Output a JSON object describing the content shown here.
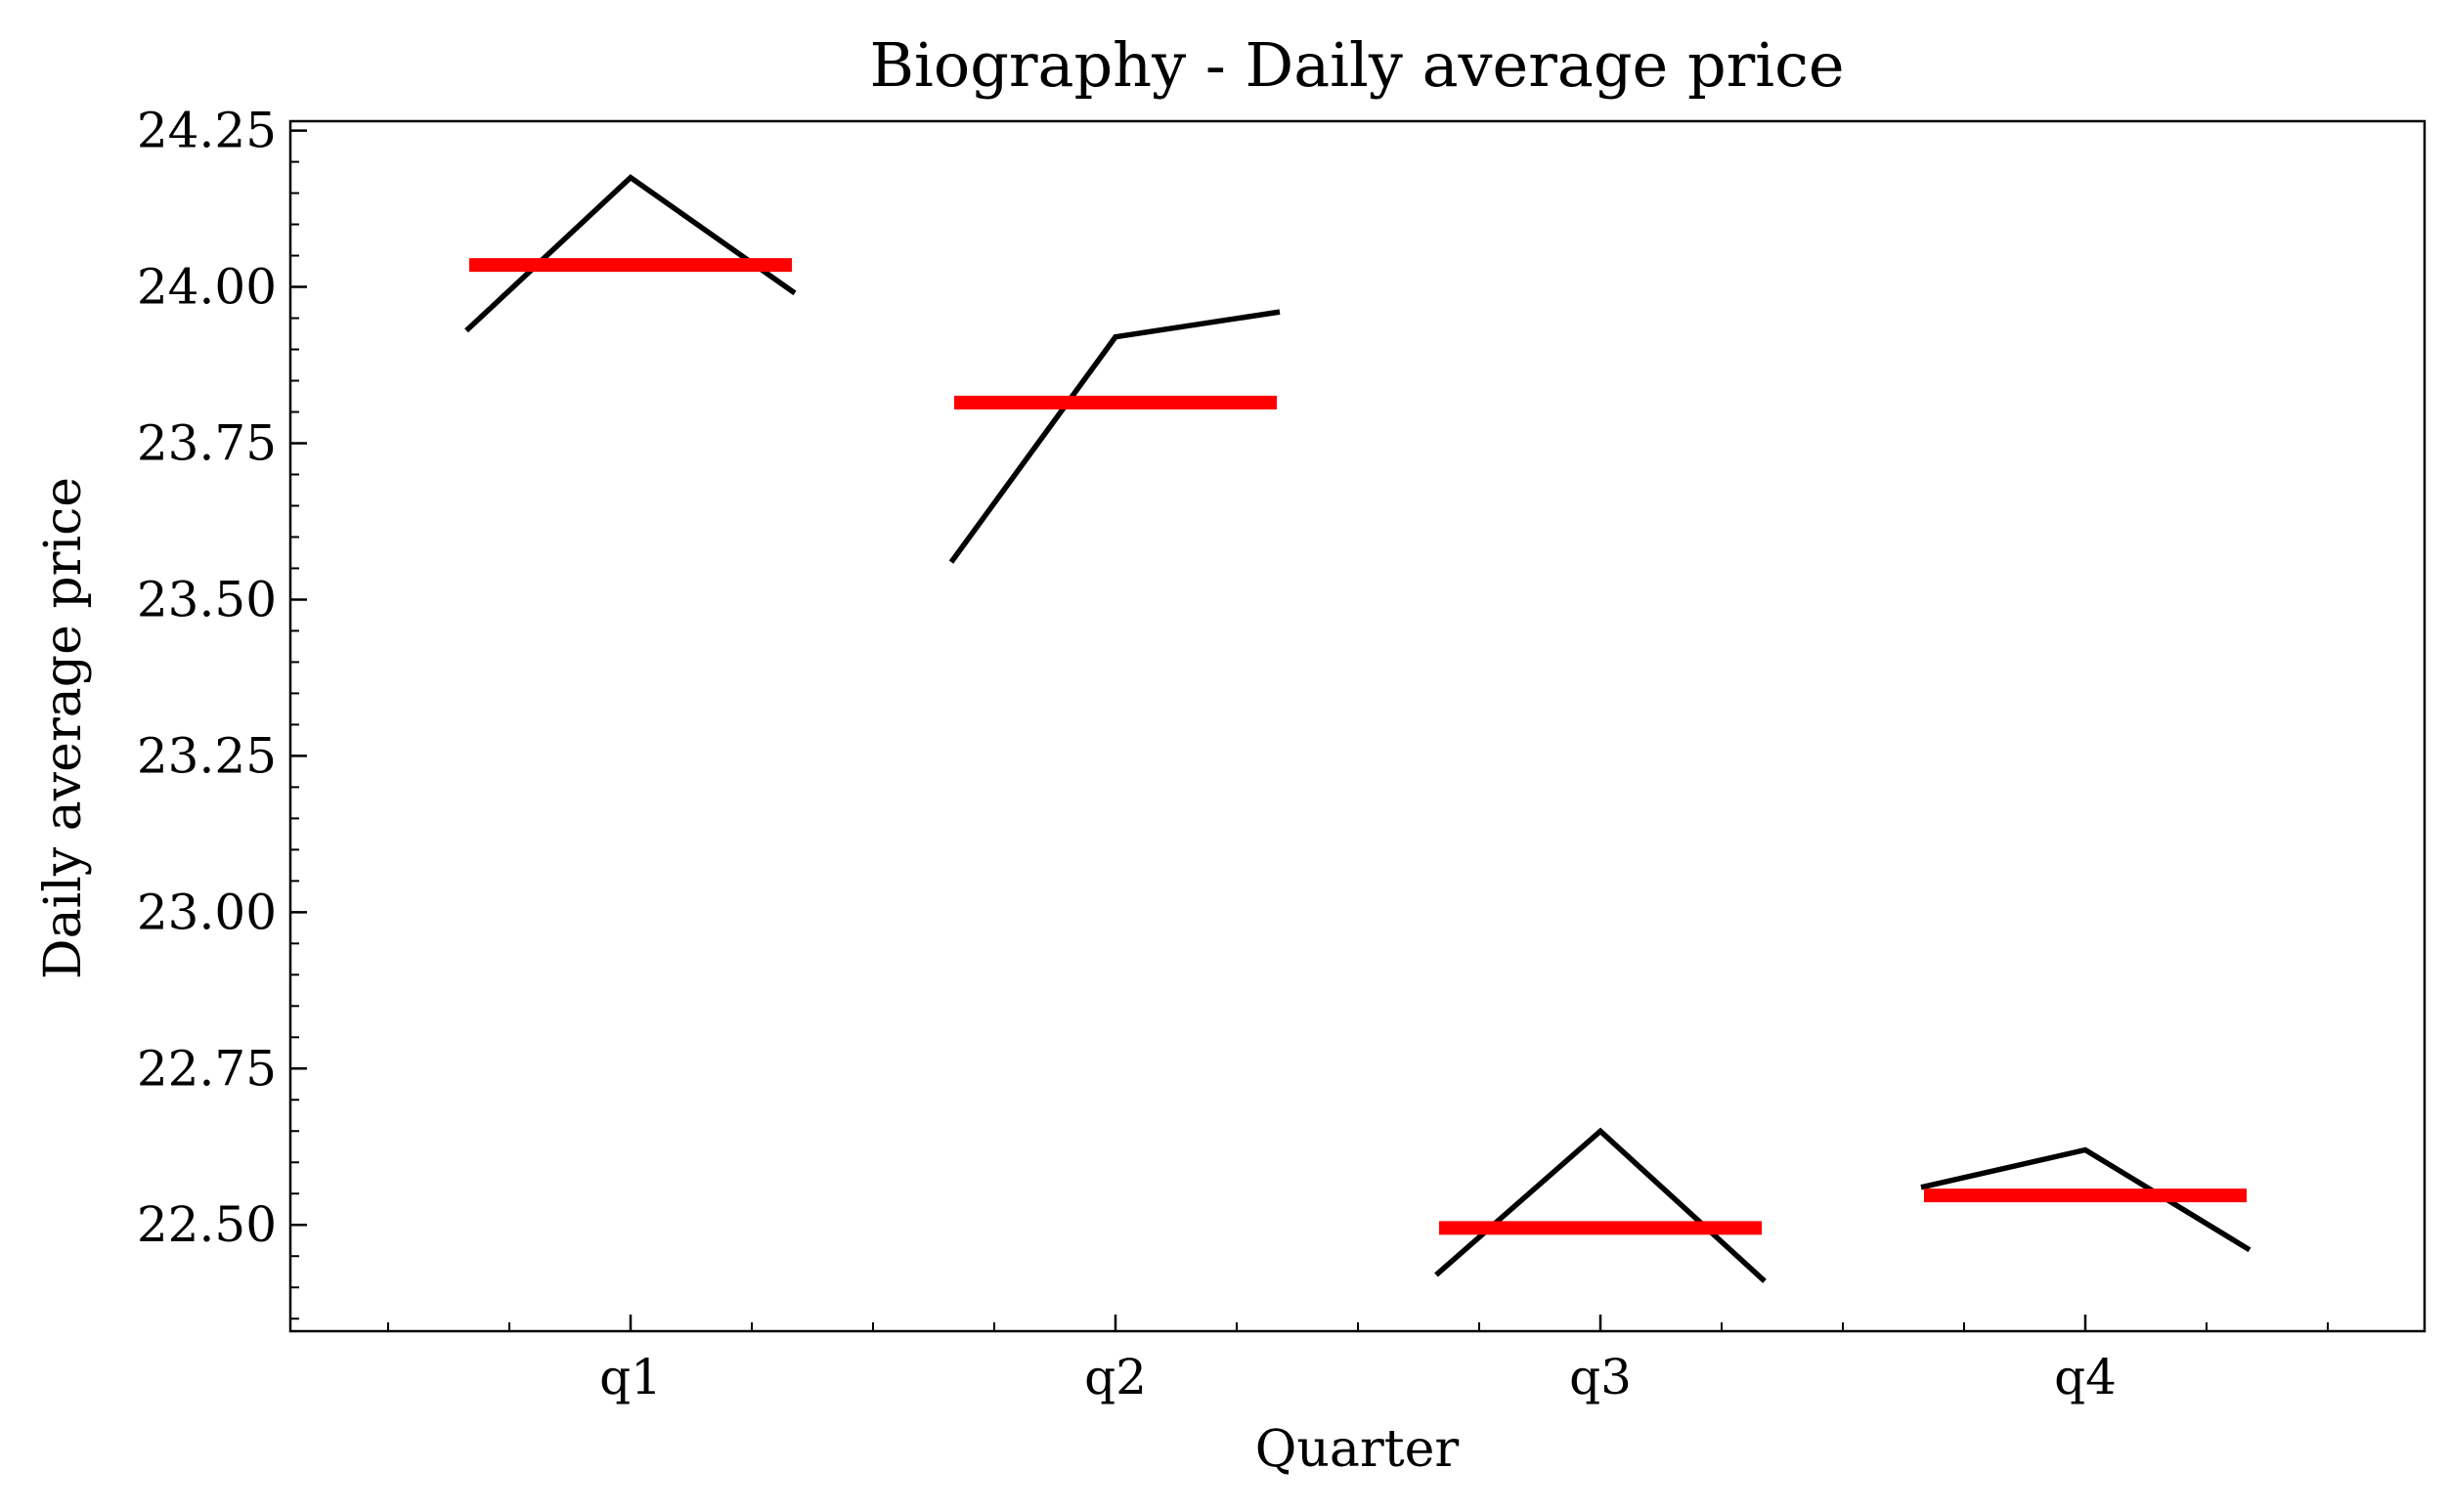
{
  "chart_data": {
    "type": "line",
    "title": "Biography - Daily average price",
    "xlabel": "Quarter",
    "ylabel": "Daily average price",
    "categories": [
      "q1",
      "q2",
      "q3",
      "q4"
    ],
    "ylim": [
      22.33,
      24.265
    ],
    "yticks": [
      "22.50",
      "22.75",
      "23.00",
      "23.25",
      "23.50",
      "23.75",
      "24.00",
      "24.25"
    ],
    "grid": false,
    "legend": "none",
    "series": [
      {
        "color": "#000000",
        "groups": [
          {
            "category": "q1",
            "values": [
              23.93,
              24.175,
              23.99
            ]
          },
          {
            "category": "q2",
            "values": [
              23.56,
              23.92,
              23.96
            ]
          },
          {
            "category": "q3",
            "values": [
              22.42,
              22.65,
              22.41
            ]
          },
          {
            "category": "q4",
            "values": [
              22.56,
              22.62,
              22.46
            ]
          }
        ]
      },
      {
        "color": "#ff0000",
        "means": [
          {
            "category": "q1",
            "value": 24.035
          },
          {
            "category": "q2",
            "value": 23.815
          },
          {
            "category": "q3",
            "value": 22.495
          },
          {
            "category": "q4",
            "value": 22.547
          }
        ]
      }
    ]
  }
}
